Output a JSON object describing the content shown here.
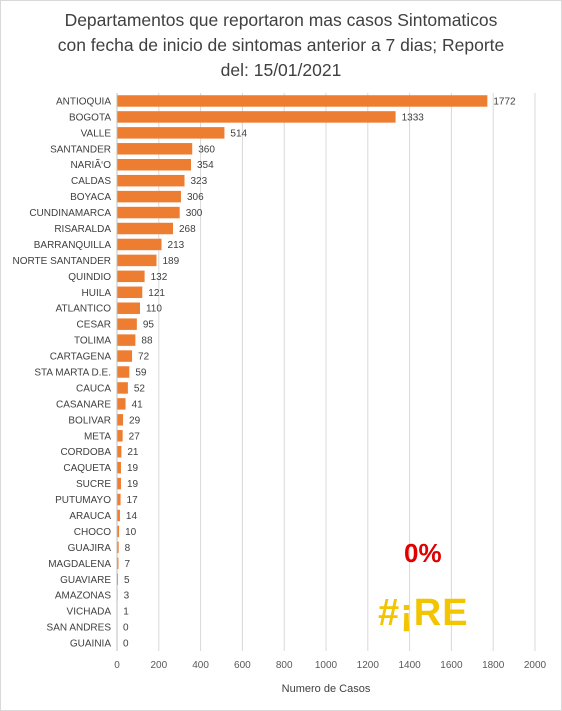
{
  "chart_data": {
    "type": "bar",
    "orientation": "horizontal",
    "title_lines": [
      "Departamentos que reportaron mas casos Sintomaticos",
      "con fecha de inicio de sintomas anterior a 7 dias; Reporte",
      "del: 15/01/2021"
    ],
    "xlabel": "Numero de Casos",
    "ylabel": "",
    "xlim": [
      0,
      2000
    ],
    "xticks": [
      "0",
      "200",
      "400",
      "600",
      "800",
      "1000",
      "1200",
      "1400",
      "1600",
      "1800",
      "2000"
    ],
    "grid": "vertical",
    "bar_color": "#ed7d31",
    "categories": [
      "ANTIOQUIA",
      "BOGOTA",
      "VALLE",
      "SANTANDER",
      "NARIÃ‘O",
      "CALDAS",
      "BOYACA",
      "CUNDINAMARCA",
      "RISARALDA",
      "BARRANQUILLA",
      "NORTE SANTANDER",
      "QUINDIO",
      "HUILA",
      "ATLANTICO",
      "CESAR",
      "TOLIMA",
      "CARTAGENA",
      "STA MARTA D.E.",
      "CAUCA",
      "CASANARE",
      "BOLIVAR",
      "META",
      "CORDOBA",
      "CAQUETA",
      "SUCRE",
      "PUTUMAYO",
      "ARAUCA",
      "CHOCO",
      "GUAJIRA",
      "MAGDALENA",
      "GUAVIARE",
      "AMAZONAS",
      "VICHADA",
      "SAN ANDRES",
      "GUAINIA"
    ],
    "values": [
      1772,
      1333,
      514,
      360,
      354,
      323,
      306,
      300,
      268,
      213,
      189,
      132,
      121,
      110,
      95,
      88,
      72,
      59,
      52,
      41,
      29,
      27,
      21,
      19,
      19,
      17,
      14,
      10,
      8,
      7,
      5,
      3,
      1,
      0,
      0
    ]
  },
  "overlay": {
    "percent_text": "0%",
    "percent_color": "#e00000",
    "logo_text": "#¡RE",
    "logo_color": "#f2c500"
  }
}
